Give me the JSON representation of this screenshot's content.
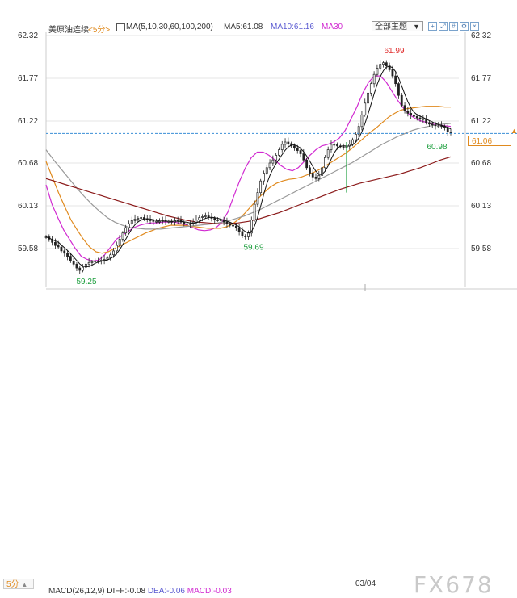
{
  "header": {
    "instrument": "美原油连续",
    "period_tag": "<5分>",
    "ma_params": "MA(5,10,30,60,100,200)",
    "ma5": "MA5:61.08",
    "ma10": "MA10:61.16",
    "ma30": "MA30",
    "theme_select": "全部主题",
    "theme_arrow": "▼",
    "toolbar_icons": [
      "crosshair-icon",
      "expand-icon",
      "grid-icon",
      "settings-icon",
      "close-icon"
    ]
  },
  "colors": {
    "up": "#e03030",
    "down": "#20a040",
    "candle": "#222222",
    "ma5": "#111111",
    "ma10": "#d12ad1",
    "ma30": "#e08a1e",
    "ma60": "#999999",
    "ma100": "#8b1a1a",
    "ma200": "#c01818",
    "price_line": "#3a8fd6",
    "orange": "#e08a1e"
  },
  "footer": {
    "period_box": "5分",
    "period_arrow": "▲",
    "date_label": "03/04",
    "macd_label": "MACD(26,12,9)",
    "diff": "DIFF:-0.08",
    "dea": "DEA:-0.06",
    "macd": "MACD:-0.03",
    "watermark": "FX678"
  },
  "chart_data": {
    "type": "candlestick",
    "y_ticks": [
      "62.32",
      "61.77",
      "61.22",
      "60.68",
      "60.13",
      "59.58"
    ],
    "ylim": [
      59.4,
      62.36
    ],
    "current_price": "61.06",
    "current_price_value": 61.06,
    "annotations": [
      {
        "text": "61.99",
        "value": 61.99,
        "color": "up"
      },
      {
        "text": "59.25",
        "value": 59.25,
        "color": "down"
      },
      {
        "text": "59.69",
        "value": 59.69,
        "color": "down"
      },
      {
        "text": "60.98",
        "value": 60.98,
        "color": "down"
      }
    ],
    "close_series": [
      59.73,
      59.7,
      59.66,
      59.62,
      59.6,
      59.55,
      59.52,
      59.48,
      59.42,
      59.38,
      59.33,
      59.3,
      59.34,
      59.38,
      59.4,
      59.41,
      59.42,
      59.42,
      59.43,
      59.44,
      59.46,
      59.5,
      59.55,
      59.62,
      59.7,
      59.78,
      59.85,
      59.9,
      59.94,
      59.96,
      59.97,
      59.98,
      59.96,
      59.95,
      59.94,
      59.93,
      59.93,
      59.93,
      59.94,
      59.93,
      59.93,
      59.92,
      59.94,
      59.94,
      59.92,
      59.9,
      59.89,
      59.9,
      59.92,
      59.95,
      59.98,
      59.99,
      60.0,
      59.98,
      59.97,
      59.95,
      59.95,
      59.94,
      59.92,
      59.9,
      59.88,
      59.87,
      59.85,
      59.8,
      59.74,
      59.73,
      59.78,
      59.95,
      60.15,
      60.3,
      60.45,
      60.55,
      60.62,
      60.68,
      60.72,
      60.78,
      60.85,
      60.92,
      60.95,
      60.93,
      60.9,
      60.87,
      60.84,
      60.8,
      60.72,
      60.62,
      60.55,
      60.5,
      60.48,
      60.52,
      60.62,
      60.75,
      60.85,
      60.92,
      60.92,
      60.9,
      60.89,
      60.88,
      60.9,
      60.92,
      60.98,
      61.05,
      61.15,
      61.3,
      61.45,
      61.58,
      61.7,
      61.82,
      61.9,
      61.95,
      61.97,
      61.93,
      61.88,
      61.8,
      61.7,
      61.55,
      61.42,
      61.35,
      61.32,
      61.3,
      61.28,
      61.26,
      61.25,
      61.24,
      61.2,
      61.18,
      61.17,
      61.16,
      61.16,
      61.15,
      61.14,
      61.08,
      61.06
    ],
    "ma_series": [
      {
        "name": "MA10",
        "color": "ma10",
        "values": [
          60.4,
          60.15,
          59.98,
          59.82,
          59.7,
          59.58,
          59.48,
          59.44,
          59.42,
          59.43,
          59.5,
          59.6,
          59.7,
          59.75,
          59.8,
          59.85,
          59.88,
          59.9,
          59.91,
          59.91,
          59.92,
          59.92,
          59.92,
          59.9,
          59.88,
          59.85,
          59.82,
          59.81,
          59.82,
          59.85,
          59.92,
          60.05,
          60.25,
          60.45,
          60.62,
          60.75,
          60.82,
          60.82,
          60.78,
          60.72,
          60.65,
          60.6,
          60.58,
          60.62,
          60.7,
          60.78,
          60.85,
          60.9,
          60.92,
          60.95,
          61.0,
          61.1,
          61.25,
          61.4,
          61.58,
          61.72,
          61.8,
          61.8,
          61.72,
          61.6,
          61.48,
          61.38,
          61.3,
          61.25,
          61.22,
          61.2,
          61.18,
          61.17,
          61.16,
          61.15
        ]
      },
      {
        "name": "MA30",
        "color": "ma30",
        "values": [
          60.7,
          60.5,
          60.3,
          60.12,
          59.95,
          59.82,
          59.7,
          59.6,
          59.54,
          59.52,
          59.54,
          59.58,
          59.62,
          59.66,
          59.7,
          59.74,
          59.78,
          59.81,
          59.84,
          59.86,
          59.88,
          59.88,
          59.88,
          59.87,
          59.86,
          59.85,
          59.84,
          59.84,
          59.84,
          59.86,
          59.9,
          59.96,
          60.04,
          60.13,
          60.22,
          60.3,
          60.37,
          60.42,
          60.45,
          60.47,
          60.48,
          60.5,
          60.53,
          60.56,
          60.6,
          60.65,
          60.7,
          60.75,
          60.8,
          60.86,
          60.93,
          61.0,
          61.07,
          61.13,
          61.2,
          61.27,
          61.32,
          61.36,
          61.38,
          61.39,
          61.4,
          61.41,
          61.41,
          61.41,
          61.4,
          61.4
        ]
      },
      {
        "name": "MA60",
        "color": "ma60",
        "values": [
          60.85,
          60.72,
          60.6,
          60.48,
          60.36,
          60.25,
          60.15,
          60.06,
          59.98,
          59.92,
          59.88,
          59.85,
          59.84,
          59.83,
          59.83,
          59.83,
          59.84,
          59.85,
          59.86,
          59.87,
          59.88,
          59.89,
          59.9,
          59.92,
          59.94,
          59.97,
          60.0,
          60.04,
          60.08,
          60.13,
          60.18,
          60.23,
          60.28,
          60.33,
          60.38,
          60.43,
          60.48,
          60.53,
          60.58,
          60.63,
          60.68,
          60.74,
          60.8,
          60.86,
          60.92,
          60.97,
          61.02,
          61.06,
          61.1,
          61.13,
          61.15,
          61.17,
          61.18,
          61.19
        ]
      },
      {
        "name": "MA100",
        "color": "ma100",
        "values": [
          60.48,
          60.44,
          60.4,
          60.36,
          60.32,
          60.28,
          60.24,
          60.2,
          60.16,
          60.12,
          60.08,
          60.04,
          60.0,
          59.97,
          59.94,
          59.92,
          59.91,
          59.9,
          59.9,
          59.91,
          59.93,
          59.96,
          60.0,
          60.04,
          60.09,
          60.14,
          60.19,
          60.24,
          60.29,
          60.34,
          60.38,
          60.42,
          60.45,
          60.48,
          60.51,
          60.54,
          60.58,
          60.62,
          60.67,
          60.72,
          60.76
        ]
      }
    ]
  }
}
